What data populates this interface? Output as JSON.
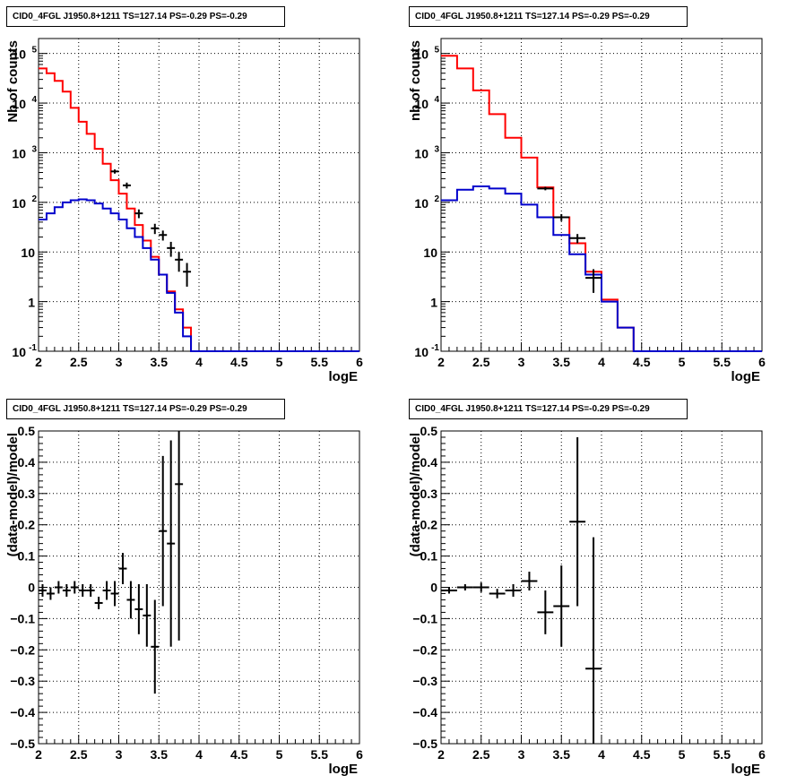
{
  "chart_data": [
    {
      "type": "line",
      "title": "CID0_4FGL J1950.8+1211 TS=127.14 PS=-0.29 PS=-0.29",
      "xlabel": "logE",
      "ylabel": "Nb of counts",
      "yscale": "log",
      "xlim": [
        2,
        6
      ],
      "ylim": [
        0.1,
        200000
      ],
      "grid": true,
      "xticks": [
        "2",
        "2.5",
        "3",
        "3.5",
        "4",
        "4.5",
        "5",
        "5.5",
        "6"
      ],
      "yticks": [
        "10^-1",
        "1",
        "10",
        "10^2",
        "10^3",
        "10^4",
        "10^5"
      ],
      "series": [
        {
          "name": "",
          "color": "#ff0000",
          "kind": "step",
          "edges": [
            2.0,
            2.1,
            2.2,
            2.3,
            2.4,
            2.5,
            2.6,
            2.7,
            2.8,
            2.9,
            3.0,
            3.1,
            3.2,
            3.3,
            3.4,
            3.5,
            3.6,
            3.7,
            3.8,
            3.9,
            4.0,
            4.1,
            4.2,
            4.3,
            4.4,
            4.5,
            4.6,
            4.7,
            4.8,
            4.9,
            5.0,
            5.1,
            5.2,
            5.3,
            5.4,
            5.5,
            5.6,
            5.7,
            5.8,
            5.9,
            6.0
          ],
          "values": [
            50000,
            40000,
            28000,
            17000,
            8000,
            4200,
            2400,
            1200,
            600,
            280,
            150,
            75,
            35,
            17,
            8,
            3.5,
            1.6,
            0.7,
            0.3,
            0.1,
            0.1,
            0.1,
            0.1,
            0.1,
            0.1,
            0.1,
            0.1,
            0.1,
            0.1,
            0.1,
            0.1,
            0.1,
            0.1,
            0.1,
            0.1,
            0.1,
            0.1,
            0.1,
            0.1,
            0.1
          ]
        },
        {
          "name": "",
          "color": "#0000cc",
          "kind": "step",
          "edges": [
            2.0,
            2.1,
            2.2,
            2.3,
            2.4,
            2.5,
            2.6,
            2.7,
            2.8,
            2.9,
            3.0,
            3.1,
            3.2,
            3.3,
            3.4,
            3.5,
            3.6,
            3.7,
            3.8,
            3.9,
            4.0,
            4.1,
            4.2,
            4.3,
            4.4,
            4.5,
            4.6,
            4.7,
            4.8,
            4.9,
            5.0,
            5.1,
            5.2,
            5.3,
            5.4,
            5.5,
            5.6,
            5.7,
            5.8,
            5.9,
            6.0
          ],
          "values": [
            45,
            60,
            80,
            100,
            110,
            115,
            110,
            95,
            75,
            60,
            45,
            30,
            20,
            12,
            7,
            3.5,
            1.5,
            0.6,
            0.2,
            0.1,
            0.1,
            0.1,
            0.1,
            0.1,
            0.1,
            0.1,
            0.1,
            0.1,
            0.1,
            0.1,
            0.1,
            0.1,
            0.1,
            0.1,
            0.1,
            0.1,
            0.1,
            0.1,
            0.1,
            0.1
          ]
        }
      ],
      "points": {
        "color": "#000000",
        "x": [
          2.95,
          3.1,
          3.25,
          3.45,
          3.55,
          3.65,
          3.75,
          3.85
        ],
        "y": [
          420,
          220,
          60,
          30,
          22,
          12,
          7,
          4
        ],
        "xerr": [
          0.05,
          0.05,
          0.05,
          0.05,
          0.05,
          0.05,
          0.05,
          0.05
        ],
        "yerr_lo": [
          40,
          30,
          12,
          7,
          5,
          4,
          3,
          2
        ],
        "yerr_hi": [
          40,
          30,
          12,
          7,
          5,
          4,
          3,
          2
        ]
      }
    },
    {
      "type": "line",
      "title": "CID0_4FGL J1950.8+1211 TS=127.14 PS=-0.29 PS=-0.29",
      "xlabel": "logE",
      "ylabel": "nb of counts",
      "yscale": "log",
      "xlim": [
        2,
        6
      ],
      "ylim": [
        0.1,
        200000
      ],
      "grid": true,
      "xticks": [
        "2",
        "2.5",
        "3",
        "3.5",
        "4",
        "4.5",
        "5",
        "5.5",
        "6"
      ],
      "yticks": [
        "10^-1",
        "1",
        "10",
        "10^2",
        "10^3",
        "10^4",
        "10^5"
      ],
      "series": [
        {
          "name": "",
          "color": "#ff0000",
          "kind": "step",
          "edges": [
            2.0,
            2.2,
            2.4,
            2.6,
            2.8,
            3.0,
            3.2,
            3.4,
            3.6,
            3.8,
            4.0,
            4.2,
            4.4,
            4.6,
            4.8,
            5.0,
            5.2,
            5.4,
            5.6,
            5.8,
            6.0
          ],
          "values": [
            90000,
            50000,
            18000,
            6000,
            2000,
            800,
            200,
            50,
            15,
            4,
            1.1,
            0.3,
            0.1,
            0.1,
            0.1,
            0.1,
            0.1,
            0.1,
            0.1,
            0.1
          ]
        },
        {
          "name": "",
          "color": "#0000cc",
          "kind": "step",
          "edges": [
            2.0,
            2.2,
            2.4,
            2.6,
            2.8,
            3.0,
            3.2,
            3.4,
            3.6,
            3.8,
            4.0,
            4.2,
            4.4,
            4.6,
            4.8,
            5.0,
            5.2,
            5.4,
            5.6,
            5.8,
            6.0
          ],
          "values": [
            110,
            180,
            210,
            190,
            150,
            90,
            50,
            22,
            9,
            3.5,
            1.0,
            0.3,
            0.1,
            0.1,
            0.1,
            0.1,
            0.1,
            0.1,
            0.1,
            0.1
          ]
        }
      ],
      "points": {
        "color": "#000000",
        "x": [
          3.3,
          3.5,
          3.7,
          3.9
        ],
        "y": [
          190,
          50,
          19,
          3
        ],
        "xerr": [
          0.1,
          0.1,
          0.1,
          0.1
        ],
        "yerr_lo": [
          15,
          8,
          4,
          1.5
        ],
        "yerr_hi": [
          15,
          8,
          4,
          1.5
        ]
      }
    },
    {
      "type": "scatter",
      "title": "CID0_4FGL J1950.8+1211 TS=127.14 PS=-0.29 PS=-0.29",
      "xlabel": "logE",
      "ylabel": "(data-model)/model",
      "xlim": [
        2,
        6
      ],
      "ylim": [
        -0.5,
        0.5
      ],
      "grid": true,
      "xticks": [
        "2",
        "2.5",
        "3",
        "3.5",
        "4",
        "4.5",
        "5",
        "5.5",
        "6"
      ],
      "yticks": [
        "-0.5",
        "-0.4",
        "-0.3",
        "-0.2",
        "-0.1",
        "0",
        "0.1",
        "0.2",
        "0.3",
        "0.4",
        "0.5"
      ],
      "points": {
        "color": "#000000",
        "x": [
          2.05,
          2.15,
          2.25,
          2.35,
          2.45,
          2.55,
          2.65,
          2.75,
          2.85,
          2.95,
          3.05,
          3.15,
          3.25,
          3.35,
          3.45,
          3.55,
          3.65,
          3.75
        ],
        "y": [
          -0.01,
          -0.02,
          0.0,
          -0.01,
          0.0,
          -0.01,
          -0.01,
          -0.05,
          -0.01,
          -0.02,
          0.06,
          -0.04,
          -0.07,
          -0.09,
          -0.19,
          0.18,
          0.14,
          0.33
        ],
        "xerr": [
          0.05,
          0.05,
          0.05,
          0.05,
          0.05,
          0.05,
          0.05,
          0.05,
          0.05,
          0.05,
          0.05,
          0.05,
          0.05,
          0.05,
          0.05,
          0.05,
          0.05,
          0.05
        ],
        "yerr": [
          0.02,
          0.02,
          0.02,
          0.02,
          0.02,
          0.02,
          0.02,
          0.02,
          0.03,
          0.04,
          0.05,
          0.06,
          0.08,
          0.1,
          0.15,
          0.24,
          0.33,
          0.5
        ]
      }
    },
    {
      "type": "scatter",
      "title": "CID0_4FGL J1950.8+1211 TS=127.14 PS=-0.29 PS=-0.29",
      "xlabel": "logE",
      "ylabel": "(data-model)/model",
      "xlim": [
        2,
        6
      ],
      "ylim": [
        -0.5,
        0.5
      ],
      "grid": true,
      "xticks": [
        "2",
        "2.5",
        "3",
        "3.5",
        "4",
        "4.5",
        "5",
        "5.5",
        "6"
      ],
      "yticks": [
        "-0.5",
        "-0.4",
        "-0.3",
        "-0.2",
        "-0.1",
        "0",
        "0.1",
        "0.2",
        "0.3",
        "0.4",
        "0.5"
      ],
      "points": {
        "color": "#000000",
        "x": [
          2.1,
          2.3,
          2.5,
          2.7,
          2.9,
          3.1,
          3.3,
          3.5,
          3.7,
          3.9
        ],
        "y": [
          -0.01,
          0.0,
          0.0,
          -0.02,
          -0.01,
          0.02,
          -0.08,
          -0.06,
          0.21,
          -0.26
        ],
        "xerr": [
          0.1,
          0.1,
          0.1,
          0.1,
          0.1,
          0.1,
          0.1,
          0.1,
          0.1,
          0.1
        ],
        "yerr": [
          0.01,
          0.01,
          0.015,
          0.015,
          0.02,
          0.03,
          0.07,
          0.13,
          0.27,
          0.42
        ]
      }
    }
  ]
}
